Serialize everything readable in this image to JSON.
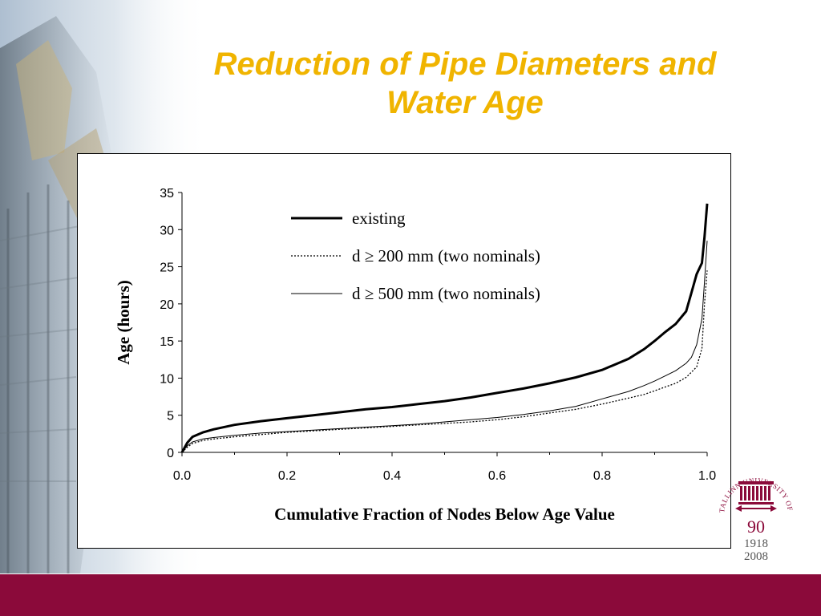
{
  "slide": {
    "title_line1": "Reduction of Pipe Diameters and",
    "title_line2": "Water Age"
  },
  "colors": {
    "title": "#f0b400",
    "footer": "#8b0a3a",
    "logo": "#8b0a3a"
  },
  "logo": {
    "ring_text": "TALLINN UNIVERSITY OF TECHNOLOGY",
    "number": "90",
    "year_start": "1918",
    "year_end": "2008"
  },
  "chart_data": {
    "type": "line",
    "xlabel": "Cumulative Fraction of Nodes Below Age Value",
    "ylabel": "Age (hours)",
    "xlim": [
      0,
      1
    ],
    "ylim": [
      0,
      35
    ],
    "x_ticks": [
      "0.0",
      "0.2",
      "0.4",
      "0.6",
      "0.8",
      "1.0"
    ],
    "y_ticks": [
      "0",
      "5",
      "10",
      "15",
      "20",
      "25",
      "30",
      "35"
    ],
    "grid": false,
    "legend_position": "top-center",
    "series": [
      {
        "name": "existing",
        "style": "thick-solid",
        "x": [
          0.0,
          0.01,
          0.02,
          0.04,
          0.06,
          0.1,
          0.15,
          0.2,
          0.25,
          0.3,
          0.35,
          0.4,
          0.45,
          0.5,
          0.55,
          0.6,
          0.65,
          0.7,
          0.75,
          0.8,
          0.85,
          0.88,
          0.9,
          0.92,
          0.94,
          0.96,
          0.97,
          0.98,
          0.99,
          0.995,
          1.0
        ],
        "y": [
          0.0,
          1.3,
          2.1,
          2.7,
          3.1,
          3.7,
          4.2,
          4.6,
          5.0,
          5.4,
          5.8,
          6.1,
          6.5,
          6.9,
          7.4,
          8.0,
          8.6,
          9.3,
          10.1,
          11.1,
          12.6,
          13.9,
          15.0,
          16.2,
          17.3,
          19.0,
          21.5,
          24.0,
          25.5,
          29.0,
          33.5
        ]
      },
      {
        "name": "d ≥ 200 mm (two nominals)",
        "style": "dotted",
        "x": [
          0.0,
          0.01,
          0.02,
          0.04,
          0.06,
          0.1,
          0.15,
          0.2,
          0.25,
          0.3,
          0.35,
          0.4,
          0.45,
          0.5,
          0.55,
          0.6,
          0.65,
          0.7,
          0.75,
          0.8,
          0.85,
          0.88,
          0.9,
          0.92,
          0.94,
          0.96,
          0.97,
          0.98,
          0.99,
          0.995,
          1.0
        ],
        "y": [
          0.0,
          0.7,
          1.2,
          1.6,
          1.8,
          2.1,
          2.4,
          2.7,
          2.9,
          3.1,
          3.3,
          3.5,
          3.7,
          3.9,
          4.1,
          4.4,
          4.8,
          5.3,
          5.8,
          6.5,
          7.3,
          7.8,
          8.3,
          8.8,
          9.3,
          10.1,
          10.8,
          11.5,
          14.0,
          20.0,
          24.5
        ]
      },
      {
        "name": "d ≥ 500 mm (two nominals)",
        "style": "thin-solid",
        "x": [
          0.0,
          0.01,
          0.02,
          0.04,
          0.06,
          0.1,
          0.15,
          0.2,
          0.25,
          0.3,
          0.35,
          0.4,
          0.45,
          0.5,
          0.55,
          0.6,
          0.65,
          0.7,
          0.75,
          0.8,
          0.85,
          0.88,
          0.9,
          0.92,
          0.94,
          0.96,
          0.97,
          0.98,
          0.99,
          0.995,
          1.0
        ],
        "y": [
          0.0,
          0.9,
          1.4,
          1.8,
          2.0,
          2.3,
          2.6,
          2.8,
          3.0,
          3.2,
          3.4,
          3.6,
          3.8,
          4.1,
          4.4,
          4.7,
          5.1,
          5.6,
          6.2,
          7.2,
          8.2,
          9.0,
          9.6,
          10.3,
          11.0,
          12.0,
          12.8,
          14.5,
          18.0,
          23.0,
          28.5
        ]
      }
    ]
  }
}
